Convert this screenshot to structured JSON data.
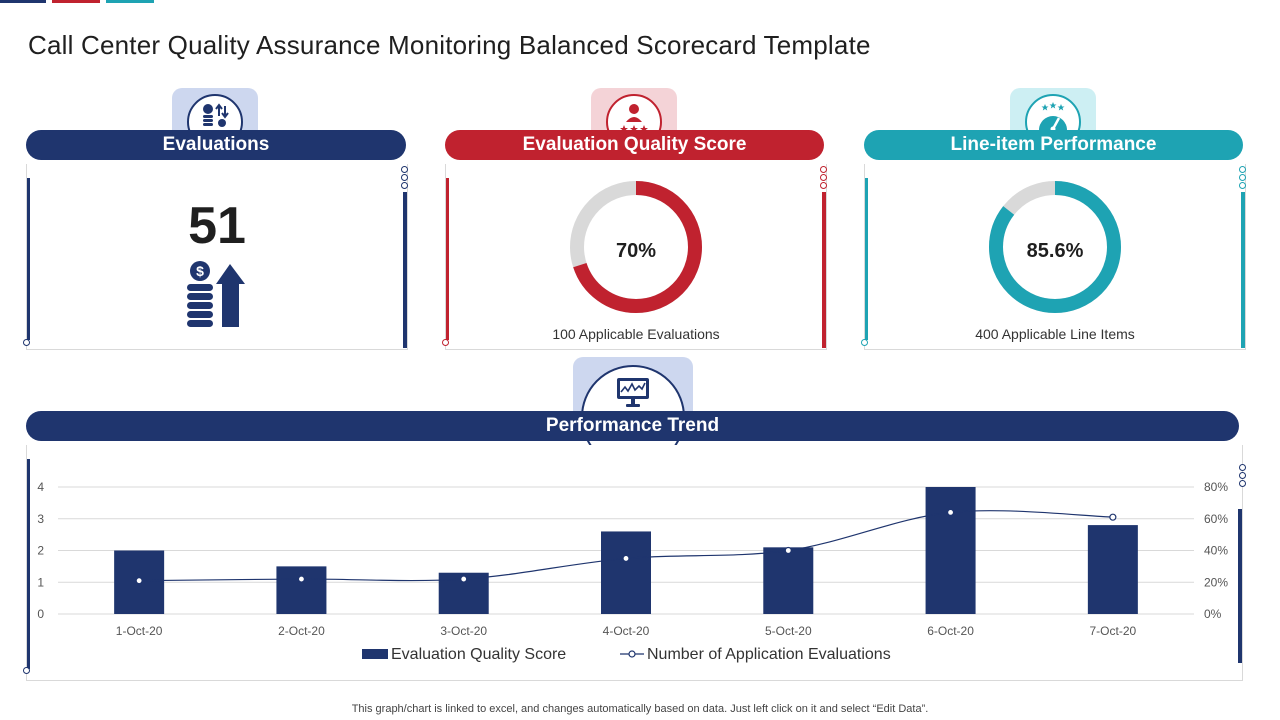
{
  "page": {
    "title": "Call Center Quality Assurance Monitoring Balanced Scorecard Template",
    "footer_note": "This graph/chart is linked to excel,  and changes automatically based on data. Just left click on it and select “Edit Data”."
  },
  "colors": {
    "navy": "#1f356e",
    "red": "#c0222f",
    "teal": "#1ea3b3",
    "navy_tab": "#cdd7ef",
    "red_tab": "#f4d3d7",
    "teal_tab": "#cdeff3",
    "donut_track": "#d9d9d9"
  },
  "cards": {
    "evaluations": {
      "title": "Evaluations",
      "value": "51",
      "icon": "coins-arrow-up-icon",
      "header_icon": "coins-arrows-icon"
    },
    "quality_score": {
      "title": "Evaluation Quality Score",
      "value_label": "70%",
      "value_fraction": 0.7,
      "caption": "100 Applicable  Evaluations",
      "header_icon": "person-stars-icon"
    },
    "line_item": {
      "title": "Line-item Performance",
      "value_label": "85.6%",
      "value_fraction": 0.856,
      "caption": "400 Applicable Line Items",
      "header_icon": "gauge-stars-icon"
    }
  },
  "trend": {
    "title": "Performance Trend",
    "header_icon": "monitor-chart-icon"
  },
  "chart_data": {
    "type": "bar",
    "categories": [
      "1-Oct-20",
      "2-Oct-20",
      "3-Oct-20",
      "4-Oct-20",
      "5-Oct-20",
      "6-Oct-20",
      "7-Oct-20"
    ],
    "series": [
      {
        "name": "Evaluation Quality Score",
        "type": "bar",
        "axis": "left",
        "values": [
          2,
          1.5,
          1.3,
          2.6,
          2.1,
          4,
          2.8
        ]
      },
      {
        "name": "Number of Application Evaluations",
        "type": "line",
        "axis": "right",
        "values": [
          0.21,
          0.22,
          0.22,
          0.35,
          0.4,
          0.64,
          0.61
        ]
      }
    ],
    "left_axis": {
      "ylim": [
        0,
        4
      ],
      "ticks": [
        "0",
        "1",
        "2",
        "3",
        "4"
      ]
    },
    "right_axis": {
      "ylim": [
        0,
        0.8
      ],
      "ticks": [
        "0%",
        "20%",
        "40%",
        "60%",
        "80%"
      ]
    },
    "grid": true,
    "legend": "bottom"
  }
}
